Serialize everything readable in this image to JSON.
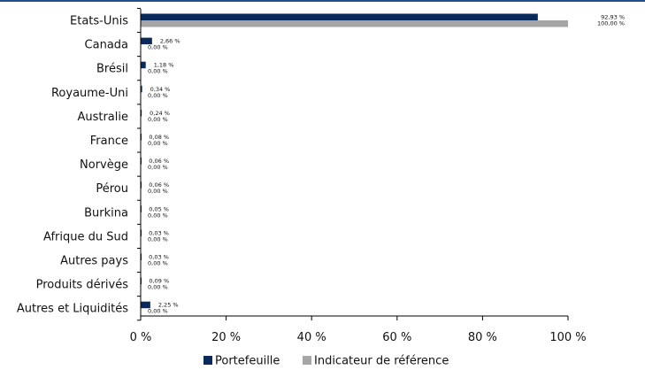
{
  "chart_data": {
    "type": "bar",
    "orientation": "horizontal",
    "categories": [
      "Etats-Unis",
      "Canada",
      "Brésil",
      "Royaume-Uni",
      "Australie",
      "France",
      "Norvège",
      "Pérou",
      "Burkina",
      "Afrique du Sud",
      "Autres pays",
      "Produits dérivés",
      "Autres et Liquidités"
    ],
    "series": [
      {
        "name": "Portefeuille",
        "color": "#0b2a5b",
        "values": [
          92.93,
          2.66,
          1.18,
          0.34,
          0.24,
          0.08,
          0.06,
          0.06,
          0.05,
          0.03,
          0.03,
          0.09,
          2.25
        ],
        "labels": [
          "92,93 %",
          "2,66 %",
          "1,18 %",
          "0,34 %",
          "0,24 %",
          "0,08 %",
          "0,06 %",
          "0,06 %",
          "0,05 %",
          "0,03 %",
          "0,03 %",
          "0,09 %",
          "2,25 %"
        ]
      },
      {
        "name": "Indicateur de référence",
        "color": "#a6a6a6",
        "values": [
          100.0,
          0,
          0,
          0,
          0,
          0,
          0,
          0,
          0,
          0,
          0,
          0,
          0
        ],
        "labels": [
          "100,00 %",
          "0,00 %",
          "0,00 %",
          "0,00 %",
          "0,00 %",
          "0,00 %",
          "0,00 %",
          "0,00 %",
          "0,00 %",
          "0,00 %",
          "0,00 %",
          "0,00 %",
          "0,00 %"
        ]
      }
    ],
    "xlim": [
      0,
      100
    ],
    "xticks": [
      0,
      20,
      40,
      60,
      80,
      100
    ],
    "xtick_labels": [
      "0 %",
      "20 %",
      "40 %",
      "60 %",
      "80 %",
      "100 %"
    ],
    "grid": false,
    "legend": "bottom"
  }
}
